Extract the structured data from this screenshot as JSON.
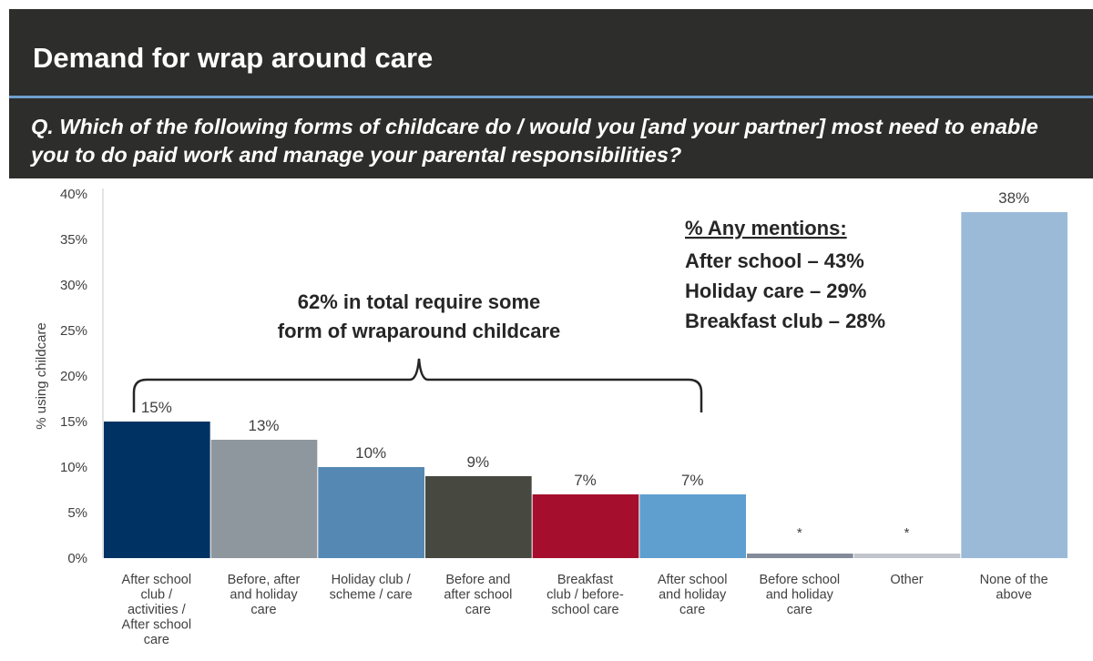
{
  "slide": {
    "title": "Demand for wrap around care",
    "question": "Q. Which of the following forms of childcare do / would you [and your partner] most need to enable you to do paid work and manage your parental responsibilities?"
  },
  "colors": {
    "header_bg": "#2d2d2b",
    "divider": "#6f9fcf"
  },
  "chart_data": {
    "type": "bar",
    "ylabel": "% using childcare",
    "ylim": [
      0,
      40
    ],
    "yticks": [
      "0%",
      "5%",
      "10%",
      "15%",
      "20%",
      "25%",
      "30%",
      "35%",
      "40%"
    ],
    "grid": false,
    "categories": [
      "After school club / activities / After school care",
      "Before, after and holiday care",
      "Holiday club / scheme / care",
      "Before and after school care",
      "Breakfast club / before-school care",
      "After school and holiday care",
      "Before school and holiday care",
      "Other",
      "None of the above"
    ],
    "category_lines": [
      [
        "After school",
        "club /",
        "activities /",
        "After school",
        "care"
      ],
      [
        "Before, after",
        "and holiday",
        "care"
      ],
      [
        "Holiday club /",
        "scheme / care"
      ],
      [
        "Before and",
        "after school",
        "care"
      ],
      [
        "Breakfast",
        "club / before-",
        "school care"
      ],
      [
        "After school",
        "and holiday",
        "care"
      ],
      [
        "Before school",
        "and holiday",
        "care"
      ],
      [
        "Other"
      ],
      [
        "None of the",
        "above"
      ]
    ],
    "values": [
      15,
      13,
      10,
      9,
      7,
      7,
      0.5,
      0.5,
      38
    ],
    "data_labels": [
      "15%",
      "13%",
      "10%",
      "9%",
      "7%",
      "7%",
      "*",
      "*",
      "38%"
    ],
    "colors": [
      "#003263",
      "#8f979e",
      "#5589b4",
      "#474840",
      "#a50f2d",
      "#5f9fcf",
      "#838b99",
      "#c0c5cc",
      "#9bbad8"
    ],
    "annotations": {
      "brace_text": [
        "62% in total require some",
        "form of wraparound childcare"
      ],
      "mentions_title": "% Any mentions:",
      "mentions": [
        "After school – 43%",
        "Holiday care – 29%",
        "Breakfast club – 28%"
      ]
    }
  }
}
